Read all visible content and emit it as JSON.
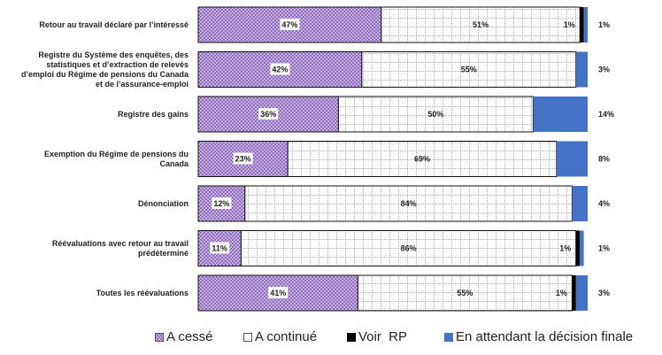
{
  "chart_data": {
    "type": "bar",
    "orientation": "horizontal",
    "stacked": true,
    "title": "",
    "xlabel": "",
    "ylabel": "",
    "xlim": [
      0,
      100
    ],
    "grid": false,
    "legend_position": "bottom",
    "categories": [
      "Retour au travail déclaré par l’intéressé",
      "Registre du Système des enquêtes, des statistiques et d’extraction de relevés d’emploi du Régime de pensions du Canada et de l’assurance-emploi",
      "Registre des gains",
      "Exemption du Régime de pensions du Canada",
      "Dénonciation",
      "Réévaluations avec retour au travail prédéterminé",
      "Toutes les réévaluations"
    ],
    "category_lines": [
      [
        "Retour au travail déclaré par l’intéressé"
      ],
      [
        "Registre du Système des enquêtes, des",
        "statistiques et d’extraction de relevés",
        "d’emploi du Régime de pensions du Canada",
        "et de l’assurance-emploi"
      ],
      [
        "Registre des gains"
      ],
      [
        "Exemption du Régime de pensions du",
        "Canada"
      ],
      [
        "Dénonciation"
      ],
      [
        "Réévaluations avec retour au travail",
        "prédéterminé"
      ],
      [
        "Toutes les réévaluations"
      ]
    ],
    "series": [
      {
        "name": "A cessé",
        "color": "#9b7fc4",
        "pattern": "checker",
        "values": [
          47,
          42,
          36,
          23,
          12,
          11,
          41
        ],
        "labels": [
          "47%",
          "42%",
          "36%",
          "23%",
          "12%",
          "11%",
          "41%"
        ]
      },
      {
        "name": "A continué",
        "color": "#ffffff",
        "pattern": "dotted-grid",
        "values": [
          51,
          55,
          50,
          69,
          84,
          86,
          55
        ],
        "labels": [
          "51%",
          "55%",
          "50%",
          "69%",
          "84%",
          "86%",
          "55%"
        ]
      },
      {
        "name": "Voir  RP",
        "color": "#000000",
        "pattern": "solid",
        "values": [
          1,
          0,
          0,
          0,
          0,
          1,
          1
        ],
        "labels": [
          "1%",
          "",
          "",
          "",
          "",
          "1%",
          "1%"
        ]
      },
      {
        "name": "En attendant la décision finale",
        "color": "#4472c4",
        "pattern": "solid",
        "values": [
          1,
          3,
          14,
          8,
          4,
          1,
          3
        ],
        "labels": [
          "1%",
          "3%",
          "14%",
          "8%",
          "4%",
          "1%",
          "3%"
        ]
      }
    ]
  }
}
